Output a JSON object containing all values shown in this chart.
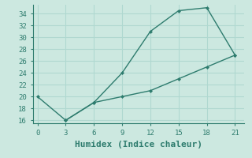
{
  "xlabel": "Humidex (Indice chaleur)",
  "background_color": "#cce8e0",
  "grid_color": "#b0d8d0",
  "line_color": "#2e7c6e",
  "x_upper": [
    0,
    3,
    6,
    9,
    12,
    15,
    18,
    21
  ],
  "y_upper": [
    20,
    16,
    19,
    24,
    31,
    34.5,
    35,
    27
  ],
  "x_lower": [
    3,
    6,
    9,
    12,
    15,
    18,
    21
  ],
  "y_lower": [
    16,
    19,
    20,
    21,
    23,
    25,
    27
  ],
  "xticks": [
    0,
    3,
    6,
    9,
    12,
    15,
    18,
    21
  ],
  "yticks": [
    16,
    18,
    20,
    22,
    24,
    26,
    28,
    30,
    32,
    34
  ],
  "ylim": [
    15.5,
    35.5
  ],
  "xlim": [
    -0.5,
    22
  ],
  "marker": "D",
  "marker_size": 2.5,
  "line_width": 1.0,
  "xlabel_fontsize": 8,
  "tick_fontsize": 6.5
}
